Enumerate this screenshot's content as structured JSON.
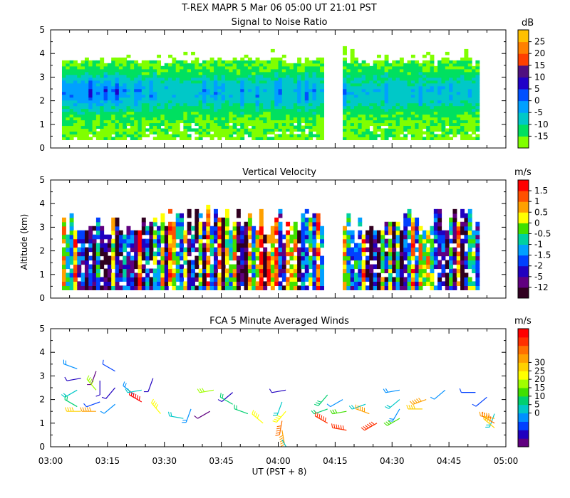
{
  "header": {
    "title": "T-REX  MAPR  5 Mar 06  05:00 UT  21:01  PST"
  },
  "x_axis": {
    "label": "UT  (PST + 8)",
    "ticks": [
      "03:00",
      "03:15",
      "03:30",
      "03:45",
      "04:00",
      "04:15",
      "04:30",
      "04:45",
      "05:00"
    ]
  },
  "y_axis_label": "Altitude (km)",
  "chart_data": [
    {
      "type": "heatmap",
      "title": "Signal to Noise Ratio",
      "xlim": [
        0,
        120
      ],
      "ylim": [
        0,
        5
      ],
      "y_ticks": [
        "0",
        "1",
        "2",
        "3",
        "4",
        "5"
      ],
      "data_gap_minutes": [
        72,
        77
      ],
      "colorbar": {
        "unit": "dB",
        "levels": [
          "-15",
          "-10",
          "-5",
          "0",
          "5",
          "10",
          "15",
          "20",
          "25"
        ],
        "colors": [
          "#80ff00",
          "#00e060",
          "#00c8c8",
          "#00a0ff",
          "#0050ff",
          "#2000c8",
          "#501080",
          "#ff4000",
          "#ff8000",
          "#ffc000"
        ]
      }
    },
    {
      "type": "heatmap",
      "title": "Vertical Velocity",
      "xlim": [
        0,
        120
      ],
      "ylim": [
        0,
        5
      ],
      "y_ticks": [
        "0",
        "1",
        "2",
        "3",
        "4",
        "5"
      ],
      "data_gap_minutes": [
        72,
        77
      ],
      "colorbar": {
        "unit": "m/s",
        "levels": [
          "-12",
          "-5",
          "-2",
          "-1.5",
          "-1",
          "-0.5",
          "0",
          "0.5",
          "1",
          "1.5"
        ],
        "colors": [
          "#300020",
          "#600080",
          "#2000c0",
          "#0040ff",
          "#00a0ff",
          "#00d0a0",
          "#40e000",
          "#ffff00",
          "#ffa000",
          "#ff5000",
          "#ff0000"
        ]
      }
    },
    {
      "type": "scatter",
      "title": "FCA 5 Minute Averaged Winds",
      "xlim": [
        0,
        120
      ],
      "ylim": [
        0,
        5
      ],
      "y_ticks": [
        "0",
        "1",
        "2",
        "3",
        "4",
        "5"
      ],
      "colorbar": {
        "unit": "m/s",
        "levels": [
          "0",
          "5",
          "10",
          "15",
          "20",
          "25",
          "30"
        ],
        "colors": [
          "#600080",
          "#2000c0",
          "#0040ff",
          "#0090ff",
          "#00c8c8",
          "#00d070",
          "#40e000",
          "#a0ff00",
          "#ffff00",
          "#ffd000",
          "#ffa000",
          "#ff7000",
          "#ff3000",
          "#ff0000"
        ]
      },
      "winds": [
        {
          "t": 7,
          "alt": 3.3,
          "spd": 8,
          "dir": 290
        },
        {
          "t": 8,
          "alt": 2.9,
          "spd": 4,
          "dir": 260
        },
        {
          "t": 7,
          "alt": 2.4,
          "spd": 10,
          "dir": 240
        },
        {
          "t": 7,
          "alt": 1.7,
          "spd": 12,
          "dir": 300
        },
        {
          "t": 8,
          "alt": 1.5,
          "spd": 22,
          "dir": 270
        },
        {
          "t": 12,
          "alt": 3.2,
          "spd": 2,
          "dir": 200
        },
        {
          "t": 13,
          "alt": 2.8,
          "spd": 3,
          "dir": 180
        },
        {
          "t": 12,
          "alt": 2.4,
          "spd": 18,
          "dir": 320
        },
        {
          "t": 13,
          "alt": 1.9,
          "spd": 6,
          "dir": 250
        },
        {
          "t": 12,
          "alt": 1.5,
          "spd": 25,
          "dir": 270
        },
        {
          "t": 17,
          "alt": 3.2,
          "spd": 6,
          "dir": 300
        },
        {
          "t": 17,
          "alt": 2.5,
          "spd": 3,
          "dir": 220
        },
        {
          "t": 17,
          "alt": 1.8,
          "spd": 7,
          "dir": 230
        },
        {
          "t": 22,
          "alt": 2.2,
          "spd": 8,
          "dir": 310
        },
        {
          "t": 24,
          "alt": 1.9,
          "spd": 30,
          "dir": 300
        },
        {
          "t": 24,
          "alt": 2.4,
          "spd": 10,
          "dir": 260
        },
        {
          "t": 27,
          "alt": 2.9,
          "spd": 4,
          "dir": 200
        },
        {
          "t": 29,
          "alt": 1.4,
          "spd": 20,
          "dir": 320
        },
        {
          "t": 35,
          "alt": 1.2,
          "spd": 11,
          "dir": 280
        },
        {
          "t": 37,
          "alt": 1.6,
          "spd": 8,
          "dir": 200
        },
        {
          "t": 42,
          "alt": 1.5,
          "spd": 2,
          "dir": 240
        },
        {
          "t": 43,
          "alt": 2.4,
          "spd": 16,
          "dir": 260
        },
        {
          "t": 48,
          "alt": 2.3,
          "spd": 4,
          "dir": 230
        },
        {
          "t": 48,
          "alt": 1.8,
          "spd": 12,
          "dir": 300
        },
        {
          "t": 52,
          "alt": 1.4,
          "spd": 12,
          "dir": 290
        },
        {
          "t": 56,
          "alt": 1.0,
          "spd": 20,
          "dir": 310
        },
        {
          "t": 62,
          "alt": 2.4,
          "spd": 4,
          "dir": 260
        },
        {
          "t": 61,
          "alt": 1.9,
          "spd": 10,
          "dir": 200
        },
        {
          "t": 62,
          "alt": 1.5,
          "spd": 20,
          "dir": 220
        },
        {
          "t": 61,
          "alt": 1.1,
          "spd": 27,
          "dir": 190
        },
        {
          "t": 61,
          "alt": 0.7,
          "spd": 25,
          "dir": 170
        },
        {
          "t": 61,
          "alt": 0.3,
          "spd": 11,
          "dir": 150
        },
        {
          "t": 73,
          "alt": 2.2,
          "spd": 13,
          "dir": 220
        },
        {
          "t": 73,
          "alt": 1.6,
          "spd": 12,
          "dir": 250
        },
        {
          "t": 73,
          "alt": 1.0,
          "spd": 28,
          "dir": 300
        },
        {
          "t": 77,
          "alt": 2.0,
          "spd": 7,
          "dir": 240
        },
        {
          "t": 78,
          "alt": 1.5,
          "spd": 15,
          "dir": 260
        },
        {
          "t": 78,
          "alt": 0.7,
          "spd": 29,
          "dir": 280
        },
        {
          "t": 83,
          "alt": 1.8,
          "spd": 10,
          "dir": 250
        },
        {
          "t": 84,
          "alt": 1.4,
          "spd": 25,
          "dir": 290
        },
        {
          "t": 86,
          "alt": 1.0,
          "spd": 29,
          "dir": 240
        },
        {
          "t": 92,
          "alt": 2.4,
          "spd": 9,
          "dir": 260
        },
        {
          "t": 92,
          "alt": 2.0,
          "spd": 11,
          "dir": 230
        },
        {
          "t": 92,
          "alt": 1.6,
          "spd": 8,
          "dir": 210
        },
        {
          "t": 92,
          "alt": 1.2,
          "spd": 14,
          "dir": 240
        },
        {
          "t": 99,
          "alt": 2.0,
          "spd": 23,
          "dir": 250
        },
        {
          "t": 98,
          "alt": 1.6,
          "spd": 21,
          "dir": 270
        },
        {
          "t": 104,
          "alt": 2.4,
          "spd": 7,
          "dir": 230
        },
        {
          "t": 112,
          "alt": 2.3,
          "spd": 6,
          "dir": 270
        },
        {
          "t": 115,
          "alt": 2.1,
          "spd": 6,
          "dir": 230
        },
        {
          "t": 117,
          "alt": 1.4,
          "spd": 11,
          "dir": 200
        },
        {
          "t": 117,
          "alt": 1.2,
          "spd": 25,
          "dir": 280
        },
        {
          "t": 117,
          "alt": 1.0,
          "spd": 27,
          "dir": 300
        },
        {
          "t": 117,
          "alt": 0.8,
          "spd": 22,
          "dir": 310
        }
      ]
    }
  ]
}
